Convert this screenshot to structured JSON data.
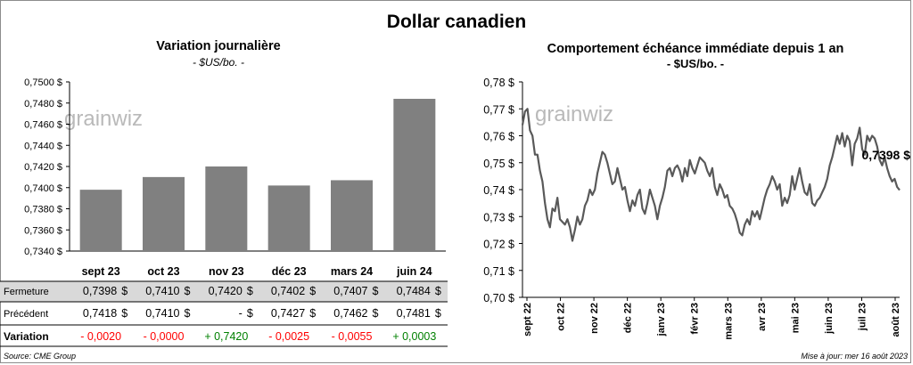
{
  "title": "Dollar canadien",
  "left": {
    "title": "Variation  journalière",
    "unit": "- $US/bo. -",
    "watermark": "grainwiz",
    "chart_data": {
      "type": "bar",
      "categories": [
        "sept 23",
        "oct 23",
        "nov 23",
        "déc 23",
        "mars 24",
        "juin 24"
      ],
      "values": [
        0.7398,
        0.741,
        0.742,
        0.7402,
        0.7407,
        0.7484
      ],
      "ylim": [
        0.734,
        0.75
      ],
      "yticks": [
        "0,7340 $",
        "0,7360 $",
        "0,7380 $",
        "0,7400 $",
        "0,7420 $",
        "0,7440 $",
        "0,7460 $",
        "0,7480 $",
        "0,7500 $"
      ],
      "bar_color": "#808080"
    },
    "table": {
      "rows": [
        {
          "label": "Fermeture",
          "cells": [
            [
              "0,7398",
              "$"
            ],
            [
              "0,7410",
              "$"
            ],
            [
              "0,7420",
              "$"
            ],
            [
              "0,7402",
              "$"
            ],
            [
              "0,7407",
              "$"
            ],
            [
              "0,7484",
              "$"
            ]
          ]
        },
        {
          "label": "Précédent",
          "cells": [
            [
              "0,7418",
              "$"
            ],
            [
              "0,7410",
              "$"
            ],
            [
              "-",
              "$"
            ],
            [
              "0,7427",
              "$"
            ],
            [
              "0,7462",
              "$"
            ],
            [
              "0,7481",
              "$"
            ]
          ]
        },
        {
          "label": "Variation",
          "cells": [
            [
              "- 0,0020",
              ""
            ],
            [
              "- 0,0000",
              ""
            ],
            [
              "+ 0,7420",
              ""
            ],
            [
              "- 0,0025",
              ""
            ],
            [
              "- 0,0055",
              ""
            ],
            [
              "+ 0,0003",
              ""
            ]
          ]
        }
      ],
      "variation_colors": [
        "#ff0000",
        "#ff0000",
        "#008000",
        "#ff0000",
        "#ff0000",
        "#008000"
      ]
    }
  },
  "right": {
    "title": "Comportement échéance immédiate depuis 1 an",
    "unit": "- $US/bo. -",
    "watermark": "grainwiz",
    "chart_data": {
      "type": "line",
      "ylim": [
        0.7,
        0.78
      ],
      "yticks": [
        "0,70 $",
        "0,71 $",
        "0,72 $",
        "0,73 $",
        "0,74 $",
        "0,75 $",
        "0,76 $",
        "0,77 $",
        "0,78 $"
      ],
      "xticks": [
        "sept 22",
        "oct 22",
        "nov 22",
        "déc 22",
        "janv 23",
        "févr 23",
        "mars 23",
        "avr 23",
        "mai 23",
        "juin 23",
        "juil 23",
        "août 23"
      ],
      "last_label": "0,7398 $",
      "line_color": "#595959",
      "values": [
        0.764,
        0.769,
        0.77,
        0.762,
        0.76,
        0.753,
        0.753,
        0.747,
        0.743,
        0.735,
        0.729,
        0.726,
        0.733,
        0.732,
        0.737,
        0.729,
        0.728,
        0.727,
        0.729,
        0.726,
        0.721,
        0.725,
        0.73,
        0.727,
        0.729,
        0.734,
        0.736,
        0.74,
        0.738,
        0.74,
        0.746,
        0.75,
        0.754,
        0.753,
        0.75,
        0.746,
        0.742,
        0.743,
        0.748,
        0.744,
        0.74,
        0.741,
        0.736,
        0.732,
        0.736,
        0.734,
        0.738,
        0.74,
        0.733,
        0.731,
        0.735,
        0.74,
        0.737,
        0.734,
        0.729,
        0.734,
        0.737,
        0.741,
        0.747,
        0.748,
        0.745,
        0.748,
        0.749,
        0.747,
        0.743,
        0.748,
        0.745,
        0.751,
        0.748,
        0.746,
        0.749,
        0.752,
        0.751,
        0.75,
        0.747,
        0.745,
        0.748,
        0.741,
        0.738,
        0.742,
        0.74,
        0.737,
        0.738,
        0.734,
        0.733,
        0.731,
        0.728,
        0.724,
        0.723,
        0.727,
        0.729,
        0.727,
        0.732,
        0.73,
        0.732,
        0.729,
        0.733,
        0.737,
        0.74,
        0.742,
        0.745,
        0.743,
        0.74,
        0.742,
        0.734,
        0.737,
        0.735,
        0.738,
        0.745,
        0.74,
        0.744,
        0.748,
        0.743,
        0.739,
        0.738,
        0.742,
        0.735,
        0.734,
        0.736,
        0.737,
        0.739,
        0.741,
        0.744,
        0.749,
        0.752,
        0.756,
        0.76,
        0.757,
        0.761,
        0.756,
        0.76,
        0.758,
        0.749,
        0.757,
        0.759,
        0.763,
        0.755,
        0.753,
        0.76,
        0.758,
        0.76,
        0.759,
        0.756,
        0.751,
        0.749,
        0.752,
        0.748,
        0.745,
        0.743,
        0.744,
        0.741,
        0.7398
      ]
    }
  },
  "source": "Source: CME Group",
  "updated": "Mise à jour: mer 16 août 2023"
}
